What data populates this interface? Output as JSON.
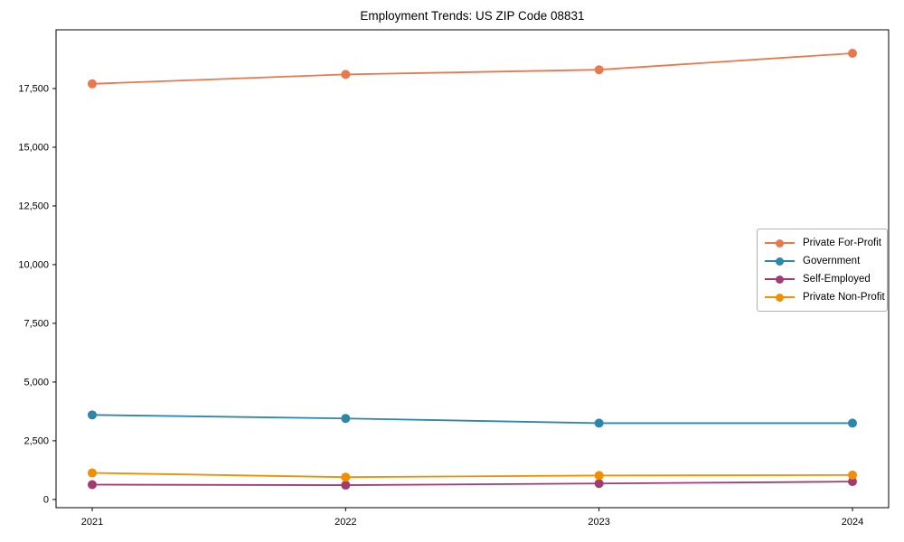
{
  "chart_data": {
    "type": "line",
    "title": "Employment Trends: US ZIP Code 08831",
    "xlabel": "",
    "ylabel": "",
    "categories": [
      "2021",
      "2022",
      "2023",
      "2024"
    ],
    "series": [
      {
        "name": "Private For-Profit",
        "color": "#E8784D",
        "values": [
          17700,
          18100,
          18300,
          19000
        ]
      },
      {
        "name": "Government",
        "color": "#2E86AB",
        "values": [
          3600,
          3450,
          3250,
          3250
        ]
      },
      {
        "name": "Self-Employed",
        "color": "#A23B72",
        "values": [
          630,
          610,
          680,
          760
        ]
      },
      {
        "name": "Private Non-Profit",
        "color": "#F18F01",
        "values": [
          1130,
          950,
          1020,
          1040
        ]
      }
    ],
    "ylim": [
      -350,
      20000
    ],
    "yticks": [
      0,
      2500,
      5000,
      7500,
      10000,
      12500,
      15000,
      17500
    ],
    "grid": false,
    "marker": "circle",
    "legend_position": "center-right",
    "axis_color": "#000000",
    "background": "#ffffff"
  }
}
